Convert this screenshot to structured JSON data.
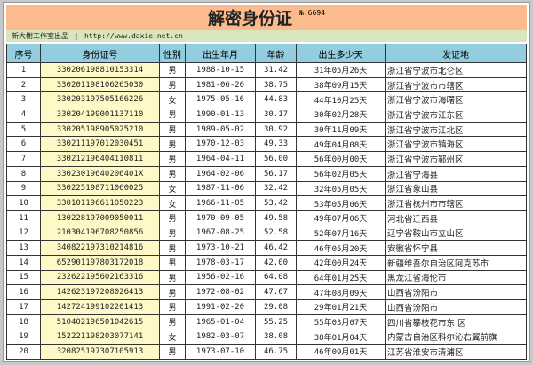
{
  "title": "解密身份证",
  "serial": "№:6694",
  "credit": {
    "studio": "新大榭工作室出品",
    "sep": "|",
    "url": "http://www.daxie.net.cn"
  },
  "colors": {
    "title_bg": "#fbbb8c",
    "credit_bg": "#d9e5bd",
    "header_bg": "#93cde0",
    "id_bg": "#fff9c8"
  },
  "columns": [
    "序号",
    "身份证号",
    "性别",
    "出生年月",
    "年龄",
    "出生多少天",
    "发证地"
  ],
  "rows": [
    [
      "1",
      "330206198810153314",
      "男",
      "1988-10-15",
      "31.42",
      "31年05月26天",
      "浙江省宁波市北仑区"
    ],
    [
      "2",
      "330201198106265030",
      "男",
      "1981-06-26",
      "38.75",
      "38年09月15天",
      "浙江省宁波市市辖区"
    ],
    [
      "3",
      "330203197505166226",
      "女",
      "1975-05-16",
      "44.83",
      "44年10月25天",
      "浙江省宁波市海曙区"
    ],
    [
      "4",
      "330204199001137110",
      "男",
      "1990-01-13",
      "30.17",
      "30年02月28天",
      "浙江省宁波市江东区"
    ],
    [
      "5",
      "330205198905025210",
      "男",
      "1989-05-02",
      "30.92",
      "30年11月09天",
      "浙江省宁波市江北区"
    ],
    [
      "6",
      "330211197012030451",
      "男",
      "1970-12-03",
      "49.33",
      "49年04月08天",
      "浙江省宁波市镇海区"
    ],
    [
      "7",
      "330212196404110811",
      "男",
      "1964-04-11",
      "56.00",
      "56年00月00天",
      "浙江省宁波市鄞州区"
    ],
    [
      "8",
      "33023019640206401X",
      "男",
      "1964-02-06",
      "56.17",
      "56年02月05天",
      "浙江省宁海县"
    ],
    [
      "9",
      "330225198711060025",
      "女",
      "1987-11-06",
      "32.42",
      "32年05月05天",
      "浙江省象山县"
    ],
    [
      "10",
      "330101196611050223",
      "女",
      "1966-11-05",
      "53.42",
      "53年05月06天",
      "浙江省杭州市市辖区"
    ],
    [
      "11",
      "130228197009050011",
      "男",
      "1970-09-05",
      "49.58",
      "49年07月06天",
      "河北省迁西县"
    ],
    [
      "12",
      "210304196708250856",
      "男",
      "1967-08-25",
      "52.58",
      "52年07月16天",
      "辽宁省鞍山市立山区"
    ],
    [
      "13",
      "340822197310214816",
      "男",
      "1973-10-21",
      "46.42",
      "46年05月20天",
      "安徽省怀宁县"
    ],
    [
      "14",
      "652901197803172018",
      "男",
      "1978-03-17",
      "42.00",
      "42年00月24天",
      "新疆维吾尔自治区阿克苏市"
    ],
    [
      "15",
      "232622195602163316",
      "男",
      "1956-02-16",
      "64.08",
      "64年01月25天",
      "黑龙江省海伦市"
    ],
    [
      "16",
      "142623197208026413",
      "男",
      "1972-08-02",
      "47.67",
      "47年08月09天",
      "山西省汾阳市"
    ],
    [
      "17",
      "142724199102201413",
      "男",
      "1991-02-20",
      "29.08",
      "29年01月21天",
      "山西省汾阳市"
    ],
    [
      "18",
      "510402196501042615",
      "男",
      "1965-01-04",
      "55.25",
      "55年03月07天",
      "四川省攀枝花市东 区"
    ],
    [
      "19",
      "152221198203077141",
      "女",
      "1982-03-07",
      "38.08",
      "38年01月04天",
      "内蒙古自治区科尔沁右翼前旗"
    ],
    [
      "20",
      "320825197307105913",
      "男",
      "1973-07-10",
      "46.75",
      "46年09月01天",
      "江苏省淮安市清浦区"
    ]
  ]
}
